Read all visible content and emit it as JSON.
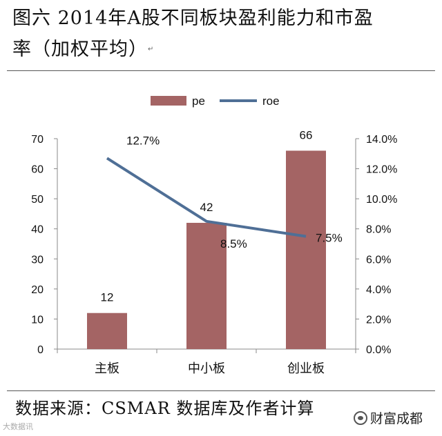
{
  "header": {
    "title_line1": "图六 2014年A股不同板块盈利能力和市盈",
    "title_line2": "率（加权平均）"
  },
  "footer": {
    "source": "数据来源：CSMAR 数据库及作者计算",
    "watermark_left": "大数据讯",
    "watermark_right": "财富成都"
  },
  "chart_data": {
    "type": "bar",
    "categories": [
      "主板",
      "中小板",
      "创业板"
    ],
    "series": [
      {
        "name": "pe",
        "kind": "bar",
        "axis": "left",
        "color": "#a46464",
        "values": [
          12,
          42,
          66
        ],
        "labels": [
          "12",
          "42",
          "66"
        ]
      },
      {
        "name": "roe",
        "kind": "line",
        "axis": "right",
        "color": "#4f6f96",
        "values": [
          0.127,
          0.085,
          0.075
        ],
        "labels": [
          "12.7%",
          "8.5%",
          "7.5%"
        ]
      }
    ],
    "y_left": {
      "min": 0,
      "max": 70,
      "ticks": [
        "0",
        "10",
        "20",
        "30",
        "40",
        "50",
        "60",
        "70"
      ]
    },
    "y_right": {
      "min": 0,
      "max": 0.14,
      "ticks": [
        "0.0%",
        "2.0%",
        "4.0%",
        "6.0%",
        "8.0%",
        "10.0%",
        "12.0%",
        "14.0%"
      ]
    },
    "grid": false,
    "legend_position": "top-center"
  }
}
